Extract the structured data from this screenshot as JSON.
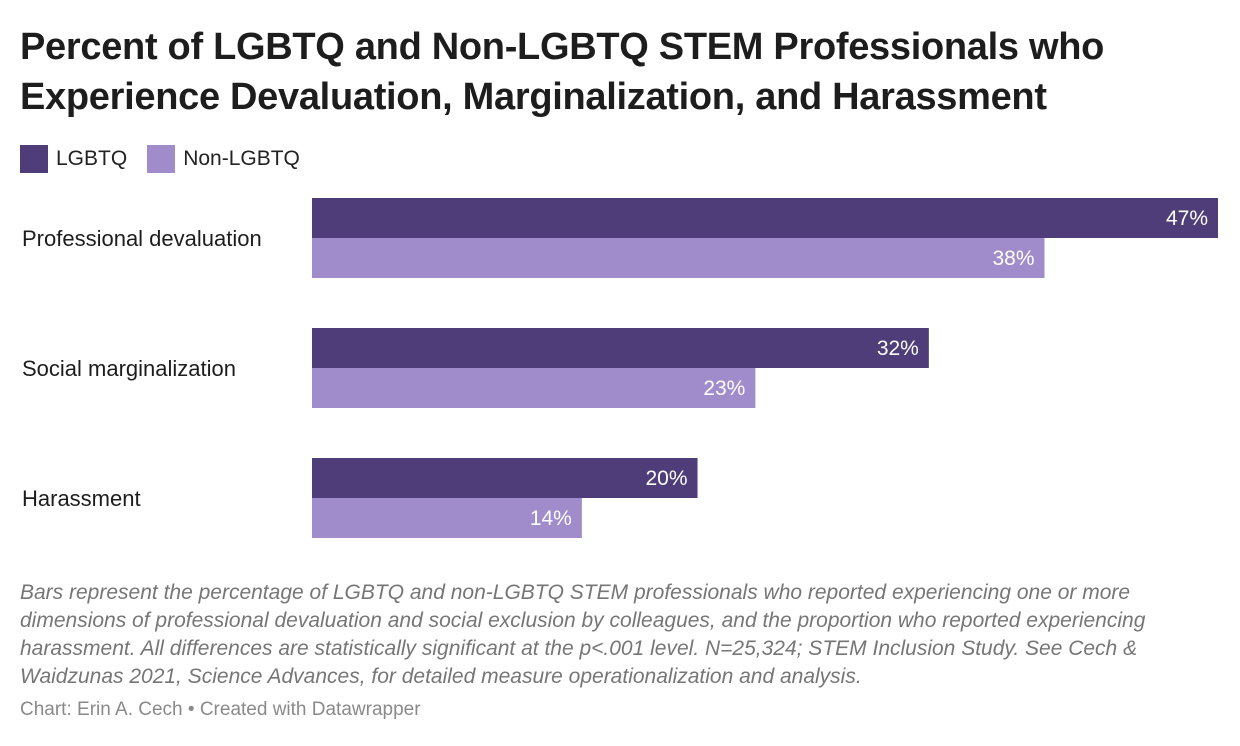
{
  "title": "Percent of LGBTQ and Non-LGBTQ STEM Professionals who Experience Devaluation, Marginalization, and Harassment",
  "legend": [
    {
      "label": "LGBTQ",
      "color": "#4e3d78"
    },
    {
      "label": "Non-LGBTQ",
      "color": "#a08bcb"
    }
  ],
  "notes": "Bars represent the percentage of LGBTQ and non-LGBTQ STEM professionals who reported experiencing one or more dimensions of professional devaluation and social exclusion by colleagues, and the proportion who reported experiencing harassment. All differences are statistically significant at the p<.001 level. N=25,324; STEM Inclusion Study. See Cech & Waidzunas 2021, Science Advances, for detailed measure operationalization and analysis.",
  "credit": "Chart: Erin A. Cech • Created with Datawrapper",
  "chart_data": {
    "type": "bar",
    "orientation": "horizontal",
    "title": "Percent of LGBTQ and Non-LGBTQ STEM Professionals who Experience Devaluation, Marginalization, and Harassment",
    "categories": [
      "Professional devaluation",
      "Social marginalization",
      "Harassment"
    ],
    "series": [
      {
        "name": "LGBTQ",
        "color": "#4e3d78",
        "values": [
          47,
          32,
          20
        ],
        "labels": [
          "47%",
          "32%",
          "20%"
        ]
      },
      {
        "name": "Non-LGBTQ",
        "color": "#a08bcb",
        "values": [
          38,
          23,
          14
        ],
        "labels": [
          "38%",
          "23%",
          "14%"
        ]
      }
    ],
    "xlim": [
      0,
      47
    ],
    "xlabel": "",
    "ylabel": "",
    "grid": false,
    "legend_position": "top-left"
  }
}
